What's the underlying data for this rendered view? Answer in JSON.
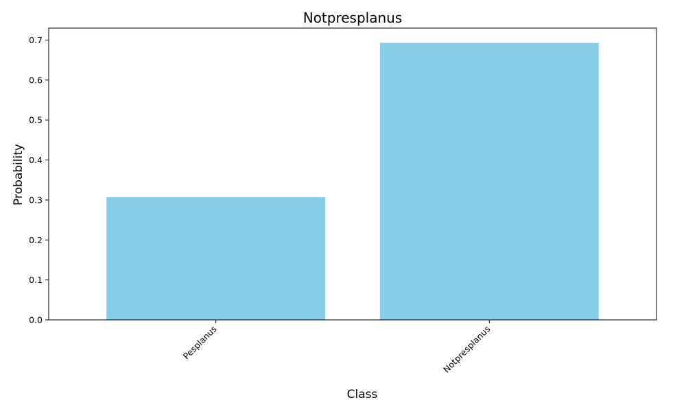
{
  "chart_data": {
    "type": "bar",
    "title": "Notpresplanus",
    "xlabel": "Class",
    "ylabel": "Probability",
    "categories": [
      "Pesplanus",
      "Notpresplanus"
    ],
    "values": [
      0.307,
      0.693
    ],
    "ylim": [
      0,
      0.73
    ],
    "yticks": [
      "0.0",
      "0.1",
      "0.2",
      "0.3",
      "0.4",
      "0.5",
      "0.6",
      "0.7"
    ],
    "bar_color": "#87CEEB",
    "grid": false,
    "legend": "none"
  }
}
